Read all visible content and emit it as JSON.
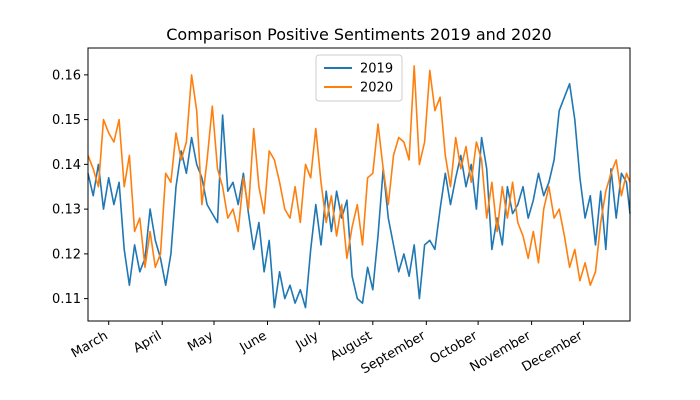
{
  "chart_data": {
    "type": "line",
    "title": "Comparison Positive Sentiments 2019 and 2020",
    "xlabel": "",
    "ylabel": "",
    "x_start": "2019-02-17",
    "x_end": "2019-12-28",
    "x_ticks": [
      {
        "date": "2019-03-01",
        "label": "March"
      },
      {
        "date": "2019-04-01",
        "label": "April"
      },
      {
        "date": "2019-05-01",
        "label": "May"
      },
      {
        "date": "2019-06-01",
        "label": "June"
      },
      {
        "date": "2019-07-01",
        "label": "July"
      },
      {
        "date": "2019-08-01",
        "label": "August"
      },
      {
        "date": "2019-09-01",
        "label": "September"
      },
      {
        "date": "2019-10-01",
        "label": "October"
      },
      {
        "date": "2019-11-01",
        "label": "November"
      },
      {
        "date": "2019-12-01",
        "label": "December"
      }
    ],
    "y_ticks": [
      0.11,
      0.12,
      0.13,
      0.14,
      0.15,
      0.16
    ],
    "ylim": [
      0.105,
      0.166
    ],
    "legend_position": "top-center",
    "grid": false,
    "series": [
      {
        "name": "2019",
        "color": "#1f77b4",
        "points": [
          [
            "2019-02-17",
            0.138
          ],
          [
            "2019-02-20",
            0.133
          ],
          [
            "2019-02-23",
            0.14
          ],
          [
            "2019-02-26",
            0.13
          ],
          [
            "2019-03-01",
            0.137
          ],
          [
            "2019-03-04",
            0.131
          ],
          [
            "2019-03-07",
            0.136
          ],
          [
            "2019-03-10",
            0.121
          ],
          [
            "2019-03-13",
            0.113
          ],
          [
            "2019-03-16",
            0.122
          ],
          [
            "2019-03-19",
            0.116
          ],
          [
            "2019-03-22",
            0.119
          ],
          [
            "2019-03-25",
            0.13
          ],
          [
            "2019-03-28",
            0.123
          ],
          [
            "2019-03-31",
            0.119
          ],
          [
            "2019-04-03",
            0.113
          ],
          [
            "2019-04-06",
            0.12
          ],
          [
            "2019-04-09",
            0.135
          ],
          [
            "2019-04-12",
            0.143
          ],
          [
            "2019-04-15",
            0.138
          ],
          [
            "2019-04-18",
            0.146
          ],
          [
            "2019-04-21",
            0.14
          ],
          [
            "2019-04-24",
            0.137
          ],
          [
            "2019-04-27",
            0.131
          ],
          [
            "2019-04-30",
            0.129
          ],
          [
            "2019-05-03",
            0.127
          ],
          [
            "2019-05-06",
            0.151
          ],
          [
            "2019-05-09",
            0.134
          ],
          [
            "2019-05-12",
            0.136
          ],
          [
            "2019-05-15",
            0.131
          ],
          [
            "2019-05-18",
            0.138
          ],
          [
            "2019-05-21",
            0.129
          ],
          [
            "2019-05-24",
            0.121
          ],
          [
            "2019-05-27",
            0.127
          ],
          [
            "2019-05-30",
            0.116
          ],
          [
            "2019-06-02",
            0.123
          ],
          [
            "2019-06-05",
            0.108
          ],
          [
            "2019-06-08",
            0.116
          ],
          [
            "2019-06-11",
            0.11
          ],
          [
            "2019-06-14",
            0.113
          ],
          [
            "2019-06-17",
            0.109
          ],
          [
            "2019-06-20",
            0.112
          ],
          [
            "2019-06-23",
            0.108
          ],
          [
            "2019-06-26",
            0.121
          ],
          [
            "2019-06-29",
            0.131
          ],
          [
            "2019-07-02",
            0.122
          ],
          [
            "2019-07-05",
            0.134
          ],
          [
            "2019-07-08",
            0.125
          ],
          [
            "2019-07-11",
            0.134
          ],
          [
            "2019-07-14",
            0.128
          ],
          [
            "2019-07-17",
            0.132
          ],
          [
            "2019-07-20",
            0.115
          ],
          [
            "2019-07-23",
            0.11
          ],
          [
            "2019-07-26",
            0.109
          ],
          [
            "2019-07-29",
            0.117
          ],
          [
            "2019-08-01",
            0.112
          ],
          [
            "2019-08-04",
            0.124
          ],
          [
            "2019-08-07",
            0.139
          ],
          [
            "2019-08-10",
            0.128
          ],
          [
            "2019-08-13",
            0.122
          ],
          [
            "2019-08-16",
            0.116
          ],
          [
            "2019-08-19",
            0.12
          ],
          [
            "2019-08-22",
            0.115
          ],
          [
            "2019-08-25",
            0.122
          ],
          [
            "2019-08-28",
            0.11
          ],
          [
            "2019-08-31",
            0.122
          ],
          [
            "2019-09-03",
            0.123
          ],
          [
            "2019-09-06",
            0.121
          ],
          [
            "2019-09-09",
            0.13
          ],
          [
            "2019-09-12",
            0.138
          ],
          [
            "2019-09-15",
            0.131
          ],
          [
            "2019-09-18",
            0.137
          ],
          [
            "2019-09-21",
            0.142
          ],
          [
            "2019-09-24",
            0.135
          ],
          [
            "2019-09-27",
            0.14
          ],
          [
            "2019-09-30",
            0.13
          ],
          [
            "2019-10-03",
            0.146
          ],
          [
            "2019-10-06",
            0.139
          ],
          [
            "2019-10-09",
            0.121
          ],
          [
            "2019-10-12",
            0.128
          ],
          [
            "2019-10-15",
            0.122
          ],
          [
            "2019-10-18",
            0.135
          ],
          [
            "2019-10-21",
            0.129
          ],
          [
            "2019-10-24",
            0.131
          ],
          [
            "2019-10-27",
            0.135
          ],
          [
            "2019-10-30",
            0.128
          ],
          [
            "2019-11-02",
            0.132
          ],
          [
            "2019-11-05",
            0.138
          ],
          [
            "2019-11-08",
            0.133
          ],
          [
            "2019-11-11",
            0.136
          ],
          [
            "2019-11-14",
            0.141
          ],
          [
            "2019-11-17",
            0.152
          ],
          [
            "2019-11-20",
            0.155
          ],
          [
            "2019-11-23",
            0.158
          ],
          [
            "2019-11-26",
            0.15
          ],
          [
            "2019-11-29",
            0.137
          ],
          [
            "2019-12-02",
            0.128
          ],
          [
            "2019-12-05",
            0.133
          ],
          [
            "2019-12-08",
            0.122
          ],
          [
            "2019-12-11",
            0.134
          ],
          [
            "2019-12-14",
            0.121
          ],
          [
            "2019-12-17",
            0.139
          ],
          [
            "2019-12-20",
            0.128
          ],
          [
            "2019-12-23",
            0.138
          ],
          [
            "2019-12-26",
            0.136
          ],
          [
            "2019-12-28",
            0.129
          ]
        ]
      },
      {
        "name": "2020",
        "color": "#ff7f0e",
        "points": [
          [
            "2019-02-17",
            0.142
          ],
          [
            "2019-02-20",
            0.139
          ],
          [
            "2019-02-23",
            0.135
          ],
          [
            "2019-02-26",
            0.15
          ],
          [
            "2019-03-01",
            0.147
          ],
          [
            "2019-03-04",
            0.145
          ],
          [
            "2019-03-07",
            0.15
          ],
          [
            "2019-03-10",
            0.135
          ],
          [
            "2019-03-13",
            0.142
          ],
          [
            "2019-03-16",
            0.125
          ],
          [
            "2019-03-19",
            0.128
          ],
          [
            "2019-03-22",
            0.117
          ],
          [
            "2019-03-25",
            0.125
          ],
          [
            "2019-03-28",
            0.117
          ],
          [
            "2019-03-31",
            0.12
          ],
          [
            "2019-04-03",
            0.138
          ],
          [
            "2019-04-06",
            0.136
          ],
          [
            "2019-04-09",
            0.147
          ],
          [
            "2019-04-12",
            0.141
          ],
          [
            "2019-04-15",
            0.145
          ],
          [
            "2019-04-18",
            0.16
          ],
          [
            "2019-04-21",
            0.152
          ],
          [
            "2019-04-24",
            0.131
          ],
          [
            "2019-04-27",
            0.141
          ],
          [
            "2019-04-30",
            0.153
          ],
          [
            "2019-05-03",
            0.139
          ],
          [
            "2019-05-06",
            0.135
          ],
          [
            "2019-05-09",
            0.128
          ],
          [
            "2019-05-12",
            0.13
          ],
          [
            "2019-05-15",
            0.125
          ],
          [
            "2019-05-18",
            0.137
          ],
          [
            "2019-05-21",
            0.13
          ],
          [
            "2019-05-24",
            0.148
          ],
          [
            "2019-05-27",
            0.135
          ],
          [
            "2019-05-30",
            0.129
          ],
          [
            "2019-06-02",
            0.143
          ],
          [
            "2019-06-05",
            0.141
          ],
          [
            "2019-06-08",
            0.136
          ],
          [
            "2019-06-11",
            0.13
          ],
          [
            "2019-06-14",
            0.128
          ],
          [
            "2019-06-17",
            0.135
          ],
          [
            "2019-06-20",
            0.127
          ],
          [
            "2019-06-23",
            0.14
          ],
          [
            "2019-06-26",
            0.137
          ],
          [
            "2019-06-29",
            0.148
          ],
          [
            "2019-07-02",
            0.136
          ],
          [
            "2019-07-05",
            0.127
          ],
          [
            "2019-07-08",
            0.133
          ],
          [
            "2019-07-11",
            0.124
          ],
          [
            "2019-07-14",
            0.131
          ],
          [
            "2019-07-17",
            0.119
          ],
          [
            "2019-07-20",
            0.126
          ],
          [
            "2019-07-23",
            0.131
          ],
          [
            "2019-07-26",
            0.122
          ],
          [
            "2019-07-29",
            0.137
          ],
          [
            "2019-08-01",
            0.138
          ],
          [
            "2019-08-04",
            0.149
          ],
          [
            "2019-08-07",
            0.139
          ],
          [
            "2019-08-10",
            0.131
          ],
          [
            "2019-08-13",
            0.142
          ],
          [
            "2019-08-16",
            0.146
          ],
          [
            "2019-08-19",
            0.145
          ],
          [
            "2019-08-22",
            0.141
          ],
          [
            "2019-08-25",
            0.162
          ],
          [
            "2019-08-28",
            0.14
          ],
          [
            "2019-08-31",
            0.145
          ],
          [
            "2019-09-03",
            0.161
          ],
          [
            "2019-09-06",
            0.152
          ],
          [
            "2019-09-09",
            0.155
          ],
          [
            "2019-09-12",
            0.142
          ],
          [
            "2019-09-15",
            0.135
          ],
          [
            "2019-09-18",
            0.146
          ],
          [
            "2019-09-21",
            0.139
          ],
          [
            "2019-09-24",
            0.144
          ],
          [
            "2019-09-27",
            0.136
          ],
          [
            "2019-09-30",
            0.145
          ],
          [
            "2019-10-03",
            0.141
          ],
          [
            "2019-10-06",
            0.128
          ],
          [
            "2019-10-09",
            0.136
          ],
          [
            "2019-10-12",
            0.125
          ],
          [
            "2019-10-15",
            0.135
          ],
          [
            "2019-10-18",
            0.128
          ],
          [
            "2019-10-21",
            0.136
          ],
          [
            "2019-10-24",
            0.127
          ],
          [
            "2019-10-27",
            0.124
          ],
          [
            "2019-10-30",
            0.119
          ],
          [
            "2019-11-02",
            0.125
          ],
          [
            "2019-11-05",
            0.118
          ],
          [
            "2019-11-08",
            0.13
          ],
          [
            "2019-11-11",
            0.135
          ],
          [
            "2019-11-14",
            0.128
          ],
          [
            "2019-11-17",
            0.13
          ],
          [
            "2019-11-20",
            0.124
          ],
          [
            "2019-11-23",
            0.117
          ],
          [
            "2019-11-26",
            0.121
          ],
          [
            "2019-11-29",
            0.114
          ],
          [
            "2019-12-02",
            0.118
          ],
          [
            "2019-12-05",
            0.113
          ],
          [
            "2019-12-08",
            0.116
          ],
          [
            "2019-12-11",
            0.127
          ],
          [
            "2019-12-14",
            0.134
          ],
          [
            "2019-12-17",
            0.138
          ],
          [
            "2019-12-20",
            0.141
          ],
          [
            "2019-12-23",
            0.133
          ],
          [
            "2019-12-26",
            0.138
          ],
          [
            "2019-12-28",
            0.136
          ]
        ]
      }
    ]
  }
}
